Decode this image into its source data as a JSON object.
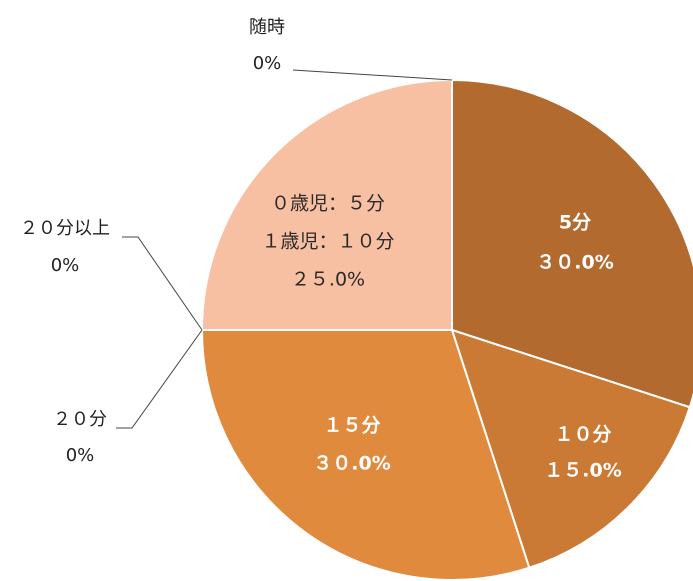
{
  "chart_data": {
    "type": "pie",
    "start_angle_deg": 0,
    "direction": "clockwise",
    "slices": [
      {
        "lines": [
          "随時",
          "0%"
        ],
        "value": 0.0,
        "color": "#b26a2f",
        "label_style": "outside"
      },
      {
        "lines": [
          "5分",
          "３０.0%"
        ],
        "value": 30.0,
        "color": "#b26a2f",
        "label_style": "inside"
      },
      {
        "lines": [
          "１０分",
          "１５.0%"
        ],
        "value": 15.0,
        "color": "#ca7a34",
        "label_style": "inside"
      },
      {
        "lines": [
          "１５分",
          "３０.0%"
        ],
        "value": 30.0,
        "color": "#e08a3e",
        "label_style": "inside"
      },
      {
        "lines": [
          "２０分",
          "0%"
        ],
        "value": 0.0,
        "color": "#e08a3e",
        "label_style": "outside"
      },
      {
        "lines": [
          "２０分以上",
          "0%"
        ],
        "value": 0.0,
        "color": "#e08a3e",
        "label_style": "outside"
      },
      {
        "lines": [
          "０歳児：５分",
          "１歳児：１０分",
          "２５.0%"
        ],
        "value": 25.0,
        "color": "#f8c0a3",
        "label_style": "inside"
      }
    ]
  }
}
